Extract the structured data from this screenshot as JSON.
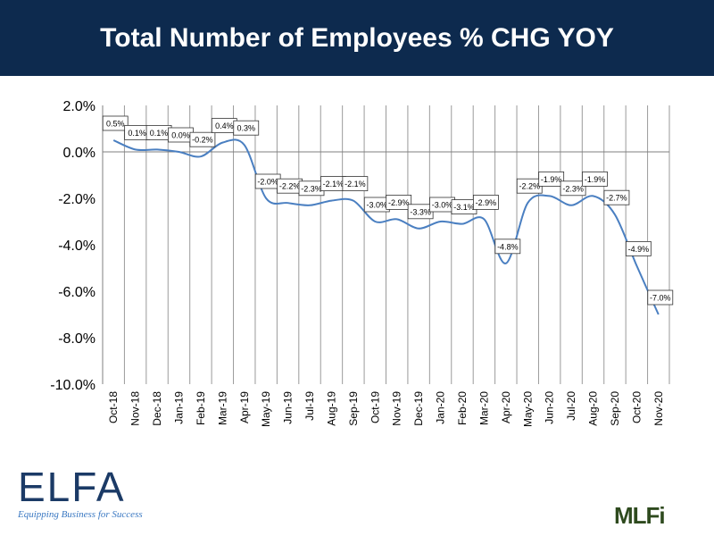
{
  "header": {
    "title": "Total Number of Employees % CHG YOY"
  },
  "logos": {
    "left_name": "ELFA",
    "left_tagline": "Equipping Business for Success",
    "right_name": "MLFi"
  },
  "colors": {
    "header_bg": "#0d2a4e",
    "line": "#4a7fc1"
  },
  "chart_data": {
    "type": "line",
    "title": "Total Number of Employees % CHG YOY",
    "categories": [
      "Oct-18",
      "Nov-18",
      "Dec-18",
      "Jan-19",
      "Feb-19",
      "Mar-19",
      "Apr-19",
      "May-19",
      "Jun-19",
      "Jul-19",
      "Aug-19",
      "Sep-19",
      "Oct-19",
      "Nov-19",
      "Dec-19",
      "Jan-20",
      "Feb-20",
      "Mar-20",
      "Apr-20",
      "May-20",
      "Jun-20",
      "Jul-20",
      "Aug-20",
      "Sep-20",
      "Oct-20",
      "Nov-20"
    ],
    "values": [
      0.5,
      0.1,
      0.1,
      0.0,
      -0.2,
      0.4,
      0.3,
      -2.0,
      -2.2,
      -2.3,
      -2.1,
      -2.1,
      -3.0,
      -2.9,
      -3.3,
      -3.0,
      -3.1,
      -2.9,
      -4.8,
      -2.2,
      -1.9,
      -2.3,
      -1.9,
      -2.7,
      -4.9,
      -7.0
    ],
    "data_labels": [
      "0.5%",
      "0.1%",
      "0.1%",
      "0.0%",
      "-0.2%",
      "0.4%",
      "0.3%",
      "-2.0%",
      "-2.2%",
      "-2.3%",
      "-2.1%",
      "-2.1%",
      "-3.0%",
      "-2.9%",
      "-3.3%",
      "-3.0%",
      "-3.1%",
      "-2.9%",
      "-4.8%",
      "-2.2%",
      "-1.9%",
      "-2.3%",
      "-1.9%",
      "-2.7%",
      "-4.9%",
      "-7.0%"
    ],
    "y_tick_labels": [
      "2.0%",
      "0.0%",
      "-2.0%",
      "-4.0%",
      "-6.0%",
      "-8.0%",
      "-10.0%"
    ],
    "y_ticks": [
      2,
      0,
      -2,
      -4,
      -6,
      -8,
      -10
    ],
    "ylim": [
      -10,
      2
    ],
    "xlabel": "",
    "ylabel": "",
    "grid": "vertical",
    "legend": "none"
  }
}
